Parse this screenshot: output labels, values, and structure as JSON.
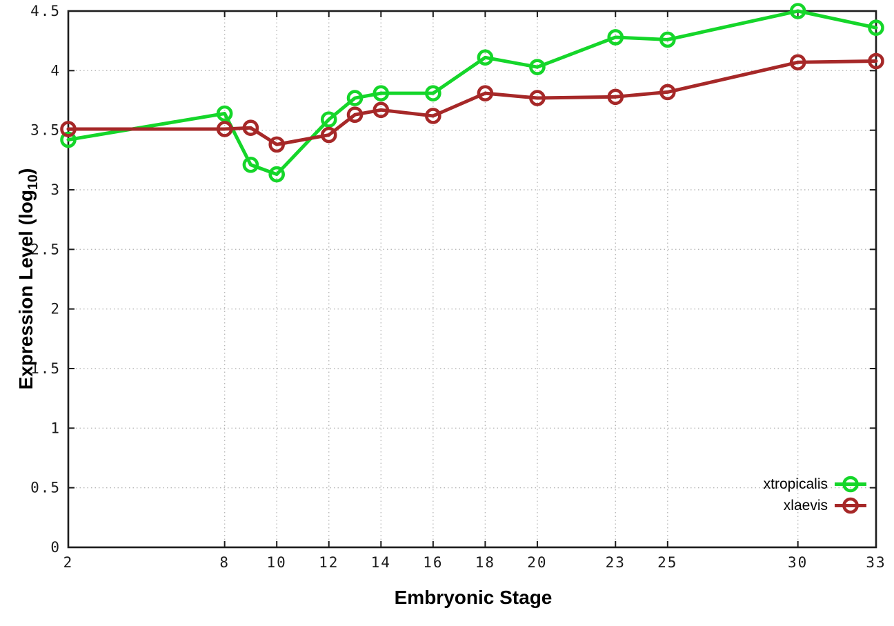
{
  "chart_data": {
    "type": "line",
    "title": "",
    "xlabel": "Embryonic Stage",
    "ylabel_main": "Expression Level (log",
    "ylabel_sub": "10",
    "ylabel_close": ")",
    "x": [
      2,
      8,
      9,
      10,
      12,
      13,
      14,
      16,
      18,
      20,
      23,
      25,
      30,
      33
    ],
    "series": [
      {
        "name": "xtropicalis",
        "color": "#15d62a",
        "values": [
          3.42,
          3.64,
          3.21,
          3.13,
          3.59,
          3.77,
          3.81,
          3.81,
          4.11,
          4.03,
          4.28,
          4.26,
          4.5,
          4.36
        ]
      },
      {
        "name": "xlaevis",
        "color": "#a62828",
        "values": [
          3.51,
          3.51,
          3.52,
          3.38,
          3.46,
          3.63,
          3.67,
          3.62,
          3.81,
          3.77,
          3.78,
          3.82,
          4.07,
          4.08
        ]
      }
    ],
    "xlim": [
      2,
      33
    ],
    "ylim": [
      0,
      4.5
    ],
    "xticks": {
      "values": [
        2,
        8,
        10,
        12,
        14,
        16,
        18,
        20,
        23,
        25,
        30,
        33
      ],
      "labels": [
        "2",
        "8",
        "10",
        "12",
        "14",
        "16",
        "18",
        "20",
        "23",
        "25",
        "30",
        "33"
      ]
    },
    "yticks": {
      "values": [
        0,
        0.5,
        1,
        1.5,
        2,
        2.5,
        3,
        3.5,
        4,
        4.5
      ],
      "labels": [
        "0",
        "0.5",
        "1",
        "1.5",
        "2",
        "2.5",
        "3",
        "3.5",
        "4",
        "4.5"
      ]
    },
    "grid": true,
    "legend_position": "inside-bottom-right",
    "colors": {
      "border": "#1c1c1c",
      "grid": "#b8b8b8",
      "background": "#ffffff",
      "text": "#000000"
    }
  }
}
